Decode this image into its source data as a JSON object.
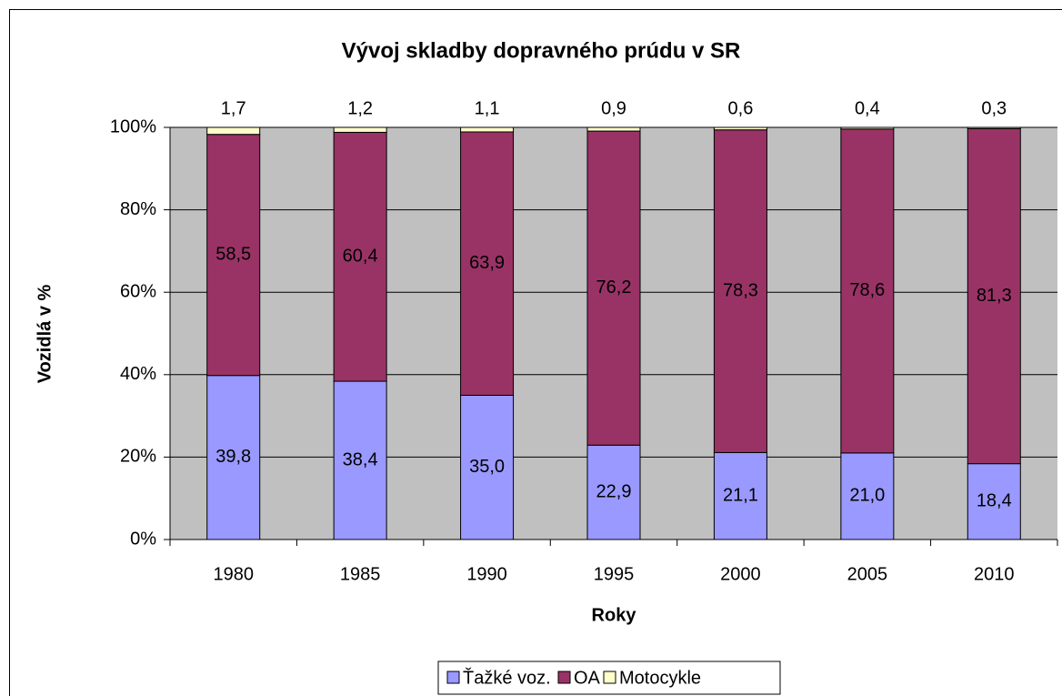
{
  "chart_data": {
    "type": "stacked_bar",
    "title": "Vývoj skladby dopravného prúdu v SR",
    "x_label": "Roky",
    "y_label": "Vozidlá v %",
    "categories": [
      "1980",
      "1985",
      "1990",
      "1995",
      "2000",
      "2005",
      "2010"
    ],
    "series": [
      {
        "name": "Ťažké voz.",
        "color": "#9999ff",
        "values": [
          39.8,
          38.4,
          35.0,
          22.9,
          21.1,
          21.0,
          18.4
        ],
        "value_labels": [
          "39,8",
          "38,4",
          "35,0",
          "22,9",
          "21,1",
          "21,0",
          "18,4"
        ]
      },
      {
        "name": "OA",
        "color": "#993366",
        "values": [
          58.5,
          60.4,
          63.9,
          76.2,
          78.3,
          78.6,
          81.3
        ],
        "value_labels": [
          "58,5",
          "60,4",
          "63,9",
          "76,2",
          "78,3",
          "78,6",
          "81,3"
        ]
      },
      {
        "name": "Motocykle",
        "color": "#ffffcc",
        "values": [
          1.7,
          1.2,
          1.1,
          0.9,
          0.6,
          0.4,
          0.3
        ],
        "value_labels": [
          "1,7",
          "1,2",
          "1,1",
          "0,9",
          "0,6",
          "0,4",
          "0,3"
        ]
      }
    ],
    "ylim": [
      0,
      100
    ],
    "yticks": [
      {
        "value": 0,
        "label": "0%"
      },
      {
        "value": 20,
        "label": "20%"
      },
      {
        "value": 40,
        "label": "40%"
      },
      {
        "value": 60,
        "label": "60%"
      },
      {
        "value": 80,
        "label": "80%"
      },
      {
        "value": 100,
        "label": "100%"
      }
    ],
    "grid": true,
    "legend": "bottom"
  }
}
